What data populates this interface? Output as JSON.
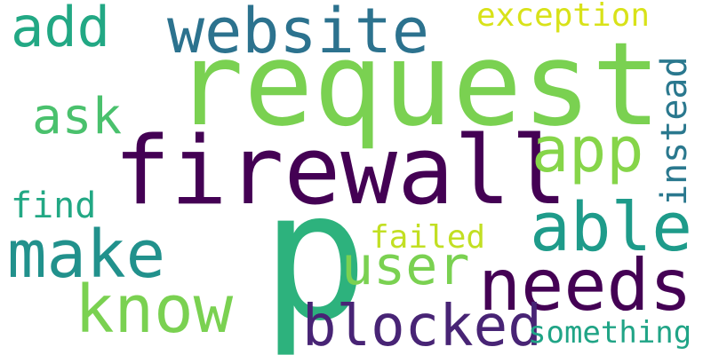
{
  "words": [
    {
      "key": "p",
      "text": "p",
      "color": "#2db27d"
    },
    {
      "key": "request",
      "text": "request",
      "color": "#7ad151"
    },
    {
      "key": "firewall",
      "text": "firewall",
      "color": "#440154"
    },
    {
      "key": "website",
      "text": "website",
      "color": "#2c728e"
    },
    {
      "key": "needs",
      "text": "needs",
      "color": "#440154"
    },
    {
      "key": "blocked",
      "text": "blocked",
      "color": "#482475"
    },
    {
      "key": "make",
      "text": "make",
      "color": "#21918c"
    },
    {
      "key": "know",
      "text": "know",
      "color": "#7ad151"
    },
    {
      "key": "able",
      "text": "able",
      "color": "#1e9b8a"
    },
    {
      "key": "user",
      "text": "user",
      "color": "#7ad151"
    },
    {
      "key": "app",
      "text": "app",
      "color": "#86d549"
    },
    {
      "key": "add",
      "text": "add",
      "color": "#22a884"
    },
    {
      "key": "ask",
      "text": "ask",
      "color": "#4ac16d"
    },
    {
      "key": "exception",
      "text": "exception",
      "color": "#d8e219"
    },
    {
      "key": "instead",
      "text": "instead",
      "color": "#2a788e"
    },
    {
      "key": "failed",
      "text": "failed",
      "color": "#c2df23"
    },
    {
      "key": "find",
      "text": "find",
      "color": "#22a884"
    },
    {
      "key": "something",
      "text": "something",
      "color": "#20a486"
    }
  ]
}
